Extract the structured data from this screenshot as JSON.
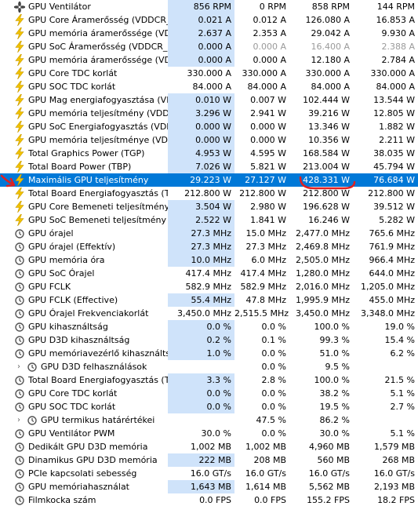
{
  "rows": [
    {
      "icon": "fan",
      "name": "GPU Ventilátor",
      "v": [
        "856 RPM",
        "0 RPM",
        "858 RPM",
        "144 RPM"
      ]
    },
    {
      "icon": "bolt",
      "name": "GPU Core Áramerősség (VDDCR_...",
      "v": [
        "0.021 A",
        "0.012 A",
        "126.080 A",
        "16.853 A"
      ]
    },
    {
      "icon": "bolt",
      "name": "GPU memória áramerőssége (VDD...",
      "v": [
        "2.637 A",
        "2.353 A",
        "29.042 A",
        "9.930 A"
      ]
    },
    {
      "icon": "bolt",
      "name": "GPU SoC Áramerősség (VDDCR_S...",
      "v": [
        "0.000 A",
        "0.000 A",
        "16.400 A",
        "2.388 A"
      ],
      "dim": [
        false,
        true,
        true,
        true
      ]
    },
    {
      "icon": "bolt",
      "name": "GPU memória áramerőssége (VDD...",
      "v": [
        "0.000 A",
        "0.000 A",
        "12.180 A",
        "2.784 A"
      ]
    },
    {
      "icon": "bolt",
      "name": "GPU Core TDC korlát",
      "v": [
        "330.000 A",
        "330.000 A",
        "330.000 A",
        "330.000 A"
      ],
      "nohl": true
    },
    {
      "icon": "bolt",
      "name": "GPU SOC TDC korlát",
      "v": [
        "84.000 A",
        "84.000 A",
        "84.000 A",
        "84.000 A"
      ],
      "nohl": true
    },
    {
      "icon": "bolt",
      "name": "GPU Mag energiafogyasztása (VDD...",
      "v": [
        "0.010 W",
        "0.007 W",
        "102.444 W",
        "13.544 W"
      ]
    },
    {
      "icon": "bolt",
      "name": "GPU memória teljesítmény (VDDIO)",
      "v": [
        "3.296 W",
        "2.941 W",
        "39.216 W",
        "12.805 W"
      ]
    },
    {
      "icon": "bolt",
      "name": "GPU SoC Energiafogyasztás (VDD...",
      "v": [
        "0.000 W",
        "0.000 W",
        "13.346 W",
        "1.882 W"
      ]
    },
    {
      "icon": "bolt",
      "name": "GPU memória teljesítménye (VDD...",
      "v": [
        "0.000 W",
        "0.000 W",
        "10.356 W",
        "2.211 W"
      ]
    },
    {
      "icon": "bolt",
      "name": "Total Graphics Power (TGP)",
      "v": [
        "4.953 W",
        "4.595 W",
        "168.584 W",
        "38.035 W"
      ]
    },
    {
      "icon": "bolt",
      "name": "Total Board Power (TBP)",
      "v": [
        "7.026 W",
        "5.821 W",
        "213.004 W",
        "45.794 W"
      ]
    },
    {
      "icon": "bolt",
      "name": "Maximális GPU teljesítmény",
      "v": [
        "29.223 W",
        "27.127 W",
        "428.331 W",
        "76.684 W"
      ],
      "selected": true
    },
    {
      "icon": "bolt",
      "name": "Total Board Energiafogyasztás (TBP)",
      "v": [
        "212.800 W",
        "212.800 W",
        "212.800 W",
        "212.800 W"
      ],
      "nohl": true
    },
    {
      "icon": "bolt",
      "name": "GPU Core Bemeneti teljesítmény ...",
      "v": [
        "3.504 W",
        "2.980 W",
        "196.628 W",
        "39.512 W"
      ]
    },
    {
      "icon": "bolt",
      "name": "GPU SoC Bemeneti teljesítmény ...",
      "v": [
        "2.522 W",
        "1.841 W",
        "16.246 W",
        "5.282 W"
      ]
    },
    {
      "icon": "clock",
      "name": "GPU órajel",
      "v": [
        "27.3 MHz",
        "15.0 MHz",
        "2,477.0 MHz",
        "765.6 MHz"
      ]
    },
    {
      "icon": "clock",
      "name": "GPU órajel (Effektív)",
      "v": [
        "27.3 MHz",
        "27.3 MHz",
        "2,469.8 MHz",
        "761.9 MHz"
      ]
    },
    {
      "icon": "clock",
      "name": "GPU memória óra",
      "v": [
        "10.0 MHz",
        "6.0 MHz",
        "2,505.0 MHz",
        "966.4 MHz"
      ]
    },
    {
      "icon": "clock",
      "name": "GPU SoC Órajel",
      "v": [
        "417.4 MHz",
        "417.4 MHz",
        "1,280.0 MHz",
        "644.0 MHz"
      ],
      "nohl": true
    },
    {
      "icon": "clock",
      "name": "GPU FCLK",
      "v": [
        "582.9 MHz",
        "582.9 MHz",
        "2,016.0 MHz",
        "1,205.0 MHz"
      ],
      "nohl": true
    },
    {
      "icon": "clock",
      "name": "GPU FCLK (Effective)",
      "v": [
        "55.4 MHz",
        "47.8 MHz",
        "1,995.9 MHz",
        "455.0 MHz"
      ]
    },
    {
      "icon": "clock",
      "name": "GPU Órajel Frekvenciakorlát",
      "v": [
        "3,450.0 MHz",
        "2,515.5 MHz",
        "3,450.0 MHz",
        "3,348.0 MHz"
      ],
      "nohl": true
    },
    {
      "icon": "clock",
      "name": "GPU kihasználtság",
      "v": [
        "0.0 %",
        "0.0 %",
        "100.0 %",
        "19.0 %"
      ]
    },
    {
      "icon": "clock",
      "name": "GPU D3D kihasználtság",
      "v": [
        "0.2 %",
        "0.1 %",
        "99.3 %",
        "15.4 %"
      ]
    },
    {
      "icon": "clock",
      "name": "GPU memóriavezérlő kihasználtsága",
      "v": [
        "1.0 %",
        "0.0 %",
        "51.0 %",
        "6.2 %"
      ]
    },
    {
      "icon": "clock",
      "name": "GPU D3D felhasználások",
      "v": [
        "",
        "0.0 %",
        "9.5 %",
        ""
      ],
      "expander": true,
      "nohl": true
    },
    {
      "icon": "clock",
      "name": "Total Board Energiafogyasztás (T...",
      "v": [
        "3.3 %",
        "2.8 %",
        "100.0 %",
        "21.5 %"
      ]
    },
    {
      "icon": "clock",
      "name": "GPU Core TDC korlát",
      "v": [
        "0.0 %",
        "0.0 %",
        "38.2 %",
        "5.1 %"
      ]
    },
    {
      "icon": "clock",
      "name": "GPU SOC TDC korlát",
      "v": [
        "0.0 %",
        "0.0 %",
        "19.5 %",
        "2.7 %"
      ]
    },
    {
      "icon": "clock",
      "name": "GPU termikus határértékei",
      "v": [
        "",
        "47.5 %",
        "86.2 %",
        ""
      ],
      "expander": true,
      "nohl": true
    },
    {
      "icon": "clock",
      "name": "GPU Ventilátor PWM",
      "v": [
        "30.0 %",
        "0.0 %",
        "30.0 %",
        "5.1 %"
      ],
      "nohl": true
    },
    {
      "icon": "clock",
      "name": "Dedikált GPU D3D memória",
      "v": [
        "1,002 MB",
        "1,002 MB",
        "4,960 MB",
        "1,579 MB"
      ],
      "nohl": true
    },
    {
      "icon": "clock",
      "name": "Dinamikus GPU D3D memória",
      "v": [
        "222 MB",
        "208 MB",
        "560 MB",
        "268 MB"
      ]
    },
    {
      "icon": "clock",
      "name": "PCIe kapcsolati sebesség",
      "v": [
        "16.0 GT/s",
        "16.0 GT/s",
        "16.0 GT/s",
        "16.0 GT/s"
      ],
      "nohl": true
    },
    {
      "icon": "clock",
      "name": "GPU memóriahasználat",
      "v": [
        "1,643 MB",
        "1,614 MB",
        "5,562 MB",
        "2,193 MB"
      ]
    },
    {
      "icon": "clock",
      "name": "Filmkocka szám",
      "v": [
        "0.0 FPS",
        "0.0 FPS",
        "155.2 FPS",
        "18.2 FPS"
      ],
      "nohl": true
    }
  ],
  "colors": {
    "selection": "#0078d7",
    "highlight": "#cfe3fa",
    "bolt": "#f2c200",
    "annotation": "#e02020"
  }
}
